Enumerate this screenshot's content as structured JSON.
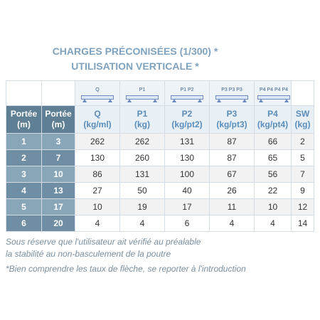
{
  "title": [
    "CHARGES PRÉCONISÉES (1/300) *",
    "UTILISATION VERTICALE *"
  ],
  "icons": [
    "Q",
    "P1",
    "P1 P2",
    "P3 P3 P3",
    "P4 P4 P4 P4"
  ],
  "table": {
    "headers": [
      [
        "Portée",
        "(m)"
      ],
      [
        "Portée",
        "(m)"
      ],
      [
        "Q",
        "(kg/ml)"
      ],
      [
        "P1",
        "(kg)"
      ],
      [
        "P2",
        "(kg/pt2)"
      ],
      [
        "P3",
        "(kg/pt3)"
      ],
      [
        "P4",
        "(kg/pt4)"
      ],
      [
        "SW",
        "(kg)"
      ]
    ],
    "rows": [
      [
        "1",
        "3",
        "262",
        "262",
        "131",
        "87",
        "66",
        "2"
      ],
      [
        "2",
        "7",
        "130",
        "260",
        "130",
        "87",
        "65",
        "5"
      ],
      [
        "3",
        "10",
        "86",
        "131",
        "100",
        "67",
        "56",
        "7"
      ],
      [
        "4",
        "13",
        "27",
        "50",
        "40",
        "26",
        "22",
        "9"
      ],
      [
        "5",
        "17",
        "10",
        "19",
        "17",
        "11",
        "10",
        "12"
      ],
      [
        "6",
        "20",
        "4",
        "4",
        "6",
        "4",
        "4",
        "14"
      ]
    ]
  },
  "notes": [
    "Sous réserve que l'utilisateur ait vérifié au préalable",
    "la stabilité au non-basculement de la poutre",
    "*Bien comprendre les taux de flèche, se reporter à l'introduction"
  ]
}
